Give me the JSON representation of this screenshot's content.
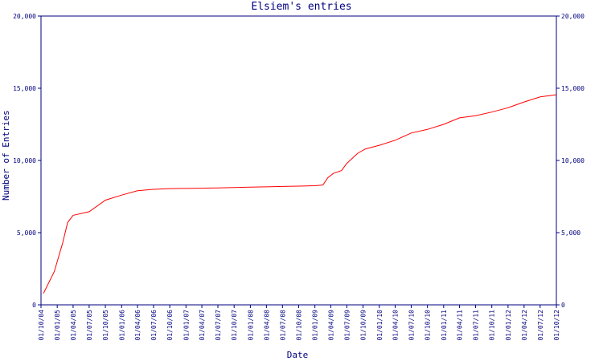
{
  "chart_data": {
    "type": "line",
    "title": "Elsiem's entries",
    "xlabel": "Date",
    "ylabel": "Number of Entries",
    "ylim": [
      0,
      20000
    ],
    "yticks": [
      0,
      5000,
      10000,
      15000,
      20000
    ],
    "ytick_labels": [
      "0",
      "5,000",
      "10,000",
      "15,000",
      "20,000"
    ],
    "xticks": [
      "01/10/04",
      "01/01/05",
      "01/04/05",
      "01/07/05",
      "01/10/05",
      "01/01/06",
      "01/04/06",
      "01/07/06",
      "01/10/06",
      "01/01/07",
      "01/04/07",
      "01/07/07",
      "01/10/07",
      "01/01/08",
      "01/04/08",
      "01/07/08",
      "01/10/08",
      "01/01/09",
      "01/04/09",
      "01/07/09",
      "01/10/09",
      "01/01/10",
      "01/04/10",
      "01/07/10",
      "01/10/10",
      "01/01/11",
      "01/04/11",
      "01/07/11",
      "01/10/11",
      "01/01/12",
      "01/04/12",
      "01/07/12",
      "01/10/12"
    ],
    "grid": false,
    "series": [
      {
        "color": "#ff0000",
        "points": [
          {
            "x": "2004-10-15",
            "y": 800
          },
          {
            "x": "2004-12-15",
            "y": 2300
          },
          {
            "x": "2005-02-01",
            "y": 4300
          },
          {
            "x": "2005-03-01",
            "y": 5700
          },
          {
            "x": "2005-04-01",
            "y": 6200
          },
          {
            "x": "2005-07-01",
            "y": 6450
          },
          {
            "x": "2005-10-01",
            "y": 7250
          },
          {
            "x": "2006-01-01",
            "y": 7600
          },
          {
            "x": "2006-04-01",
            "y": 7900
          },
          {
            "x": "2006-07-01",
            "y": 8000
          },
          {
            "x": "2006-10-01",
            "y": 8050
          },
          {
            "x": "2007-01-01",
            "y": 8060
          },
          {
            "x": "2007-04-01",
            "y": 8080
          },
          {
            "x": "2007-07-01",
            "y": 8100
          },
          {
            "x": "2007-10-01",
            "y": 8120
          },
          {
            "x": "2008-01-01",
            "y": 8150
          },
          {
            "x": "2008-04-01",
            "y": 8170
          },
          {
            "x": "2008-07-01",
            "y": 8200
          },
          {
            "x": "2008-10-01",
            "y": 8220
          },
          {
            "x": "2009-01-01",
            "y": 8250
          },
          {
            "x": "2009-02-15",
            "y": 8300
          },
          {
            "x": "2009-03-15",
            "y": 8800
          },
          {
            "x": "2009-04-15",
            "y": 9100
          },
          {
            "x": "2009-06-01",
            "y": 9300
          },
          {
            "x": "2009-07-01",
            "y": 9800
          },
          {
            "x": "2009-09-01",
            "y": 10500
          },
          {
            "x": "2009-10-15",
            "y": 10800
          },
          {
            "x": "2010-01-01",
            "y": 11050
          },
          {
            "x": "2010-04-01",
            "y": 11400
          },
          {
            "x": "2010-07-01",
            "y": 11900
          },
          {
            "x": "2010-10-01",
            "y": 12150
          },
          {
            "x": "2011-01-01",
            "y": 12500
          },
          {
            "x": "2011-04-01",
            "y": 12950
          },
          {
            "x": "2011-07-01",
            "y": 13100
          },
          {
            "x": "2011-10-01",
            "y": 13350
          },
          {
            "x": "2012-01-01",
            "y": 13650
          },
          {
            "x": "2012-04-01",
            "y": 14050
          },
          {
            "x": "2012-07-01",
            "y": 14400
          },
          {
            "x": "2012-10-01",
            "y": 14550
          }
        ]
      }
    ]
  }
}
